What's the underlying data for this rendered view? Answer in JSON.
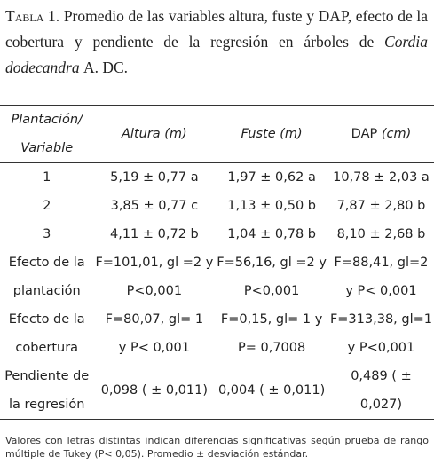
{
  "caption": {
    "label": "Tabla 1.",
    "text": "Promedio de las variables altura, fuste y DAP, efecto de la cobertura y pendiente de la regresión en árboles de",
    "species": "Cordia dodecandra",
    "authority": "A. DC."
  },
  "table": {
    "headers": [
      [
        "Plantación/",
        "Variable"
      ],
      [
        "Altura (m)"
      ],
      [
        "Fuste (m)"
      ],
      [
        "DAP",
        "(cm)"
      ]
    ],
    "rows": [
      [
        [
          "1"
        ],
        [
          "5,19 ± 0,77 a"
        ],
        [
          "1,97 ± 0,62 a"
        ],
        [
          "10,78 ± 2,03 a"
        ]
      ],
      [
        [
          "2"
        ],
        [
          "3,85 ± 0,77 c"
        ],
        [
          "1,13 ± 0,50 b"
        ],
        [
          "7,87 ± 2,80 b"
        ]
      ],
      [
        [
          "3"
        ],
        [
          "4,11 ± 0,72 b"
        ],
        [
          "1,04 ± 0,78 b"
        ],
        [
          "8,10 ± 2,68 b"
        ]
      ],
      [
        [
          "Efecto de la",
          "plantación"
        ],
        [
          "F=101,01, gl =2 y",
          "P<0,001"
        ],
        [
          "F=56,16, gl =2 y",
          "P<0,001"
        ],
        [
          "F=88,41, gl=2",
          "y P< 0,001"
        ]
      ],
      [
        [
          "Efecto de la",
          "cobertura"
        ],
        [
          "F=80,07, gl= 1",
          "y P< 0,001"
        ],
        [
          "F=0,15, gl= 1 y",
          "P= 0,7008"
        ],
        [
          "F=313,38, gl=1",
          "y P<0,001"
        ]
      ],
      [
        [
          "Pendiente de",
          "la regresión"
        ],
        [
          "0,098 ( ± 0,011)"
        ],
        [
          "0,004 ( ± 0,011)"
        ],
        [
          "0,489 ( ±",
          "0,027)"
        ]
      ]
    ]
  },
  "footnote": "Valores con letras distintas indican diferencias significativas según prueba de rango múltiple de Tukey (P< 0,05). Promedio ± desviación estándar."
}
